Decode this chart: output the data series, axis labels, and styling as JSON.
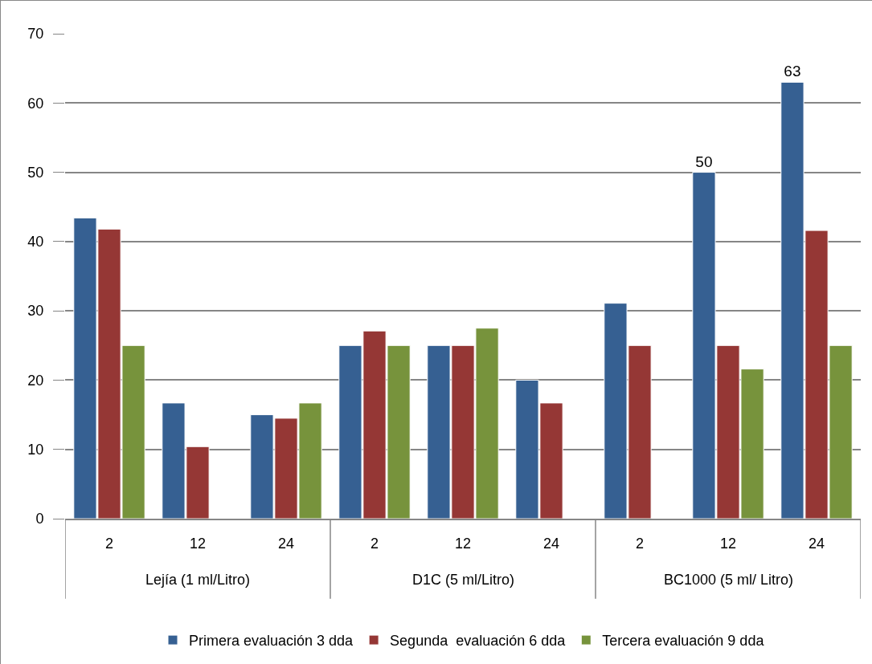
{
  "chart_data": {
    "type": "bar",
    "categories": [
      "2",
      "12",
      "24",
      "2",
      "12",
      "24",
      "2",
      "12",
      "24"
    ],
    "annotations": [
      "Lejía (1 ml/Litro)",
      "D1C (5 ml/Litro)",
      "BC1000 (5 ml/ Litro)"
    ],
    "series": [
      {
        "name": "Primera evaluación 3 dda",
        "color": "#366092",
        "values": [
          43.4,
          16.7,
          15.0,
          25,
          25,
          20,
          31.1,
          50,
          63
        ],
        "value_labels": [
          null,
          null,
          null,
          null,
          null,
          null,
          null,
          "50",
          "63"
        ]
      },
      {
        "name": "Segunda  evaluación 6 dda",
        "color": "#953735",
        "values": [
          41.8,
          10.4,
          14.5,
          27.1,
          25,
          16.7,
          25,
          25,
          41.6
        ]
      },
      {
        "name": "Tercera evaluación 9 dda",
        "color": "#77933c",
        "values": [
          25,
          null,
          16.7,
          25,
          27.5,
          null,
          null,
          21.6,
          25
        ]
      }
    ],
    "ylim": [
      0,
      70
    ],
    "yticks": [
      0,
      10,
      20,
      30,
      40,
      50,
      60,
      70
    ],
    "grid": "y",
    "legend": "bottom"
  }
}
